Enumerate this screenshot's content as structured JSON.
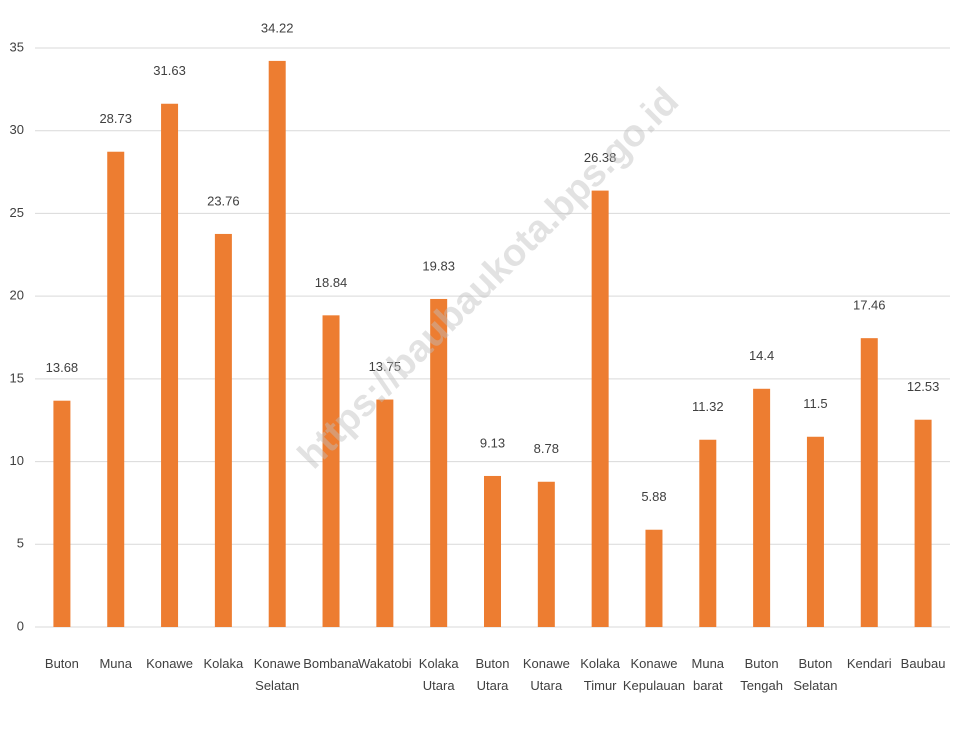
{
  "chart_data": {
    "type": "bar",
    "categories": [
      "Buton",
      "Muna",
      "Konawe",
      "Kolaka",
      "Konawe Selatan",
      "Bombana",
      "Wakatobi",
      "Kolaka Utara",
      "Buton Utara",
      "Konawe Utara",
      "Kolaka Timur",
      "Konawe Kepulauan",
      "Muna barat",
      "Buton Tengah",
      "Buton Selatan",
      "Kendari",
      "Baubau"
    ],
    "values": [
      13.68,
      28.73,
      31.63,
      23.76,
      34.22,
      18.84,
      13.75,
      19.83,
      9.13,
      8.78,
      26.38,
      5.88,
      11.32,
      14.4,
      11.5,
      17.46,
      12.53
    ],
    "color": "#ed7d31",
    "ylim": [
      0,
      35
    ],
    "yticks": [
      0,
      5,
      10,
      15,
      20,
      25,
      30,
      35
    ],
    "grid": true,
    "watermark": "https://baubaukota.bps.go.id"
  }
}
